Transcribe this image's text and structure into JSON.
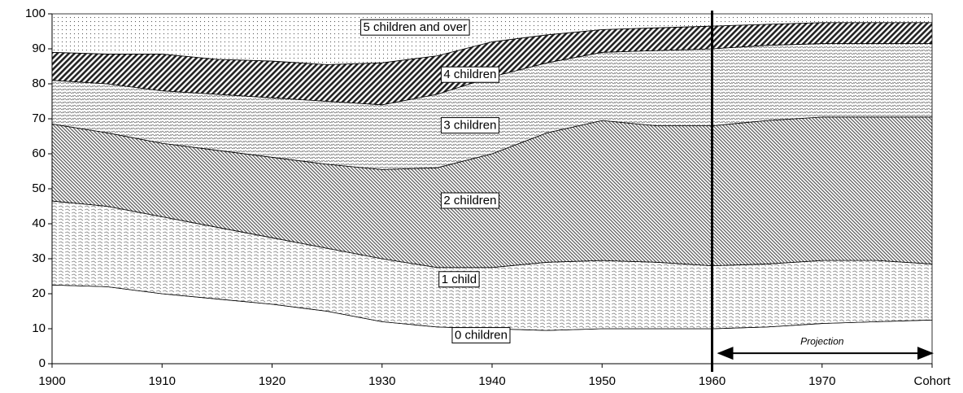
{
  "chart_data": {
    "type": "stacked_area",
    "x": [
      1900,
      1905,
      1910,
      1915,
      1920,
      1925,
      1930,
      1935,
      1940,
      1945,
      1950,
      1955,
      1960,
      1965,
      1970,
      1975,
      1980
    ],
    "series": [
      {
        "name": "0 children",
        "pattern": "none",
        "color": "#ffffff",
        "values": [
          22.5,
          22,
          20,
          18.5,
          17,
          15,
          12,
          10.5,
          10,
          9.5,
          10,
          10,
          10,
          10.5,
          11.5,
          12,
          12.5
        ]
      },
      {
        "name": "1 child",
        "pattern": "wave",
        "color": "#000000",
        "values": [
          24,
          23,
          22,
          20.5,
          19,
          18,
          18,
          17,
          17.5,
          19.5,
          19.5,
          19,
          18,
          18,
          18,
          17.5,
          16
        ]
      },
      {
        "name": "2 children",
        "pattern": "diag-dense",
        "color": "#000000",
        "values": [
          22,
          21,
          21,
          22,
          23,
          24,
          25.5,
          28.5,
          32.5,
          37,
          40,
          39,
          40,
          41,
          41,
          41,
          42
        ]
      },
      {
        "name": "3 children",
        "pattern": "horiz-wave",
        "color": "#000000",
        "values": [
          12.5,
          14,
          15,
          16,
          17,
          18,
          18.5,
          21,
          22,
          20,
          19.5,
          21.5,
          22,
          21.5,
          21,
          21,
          21
        ]
      },
      {
        "name": "4 children",
        "pattern": "diag-dark",
        "color": "#000000",
        "values": [
          8,
          8.5,
          10.5,
          10,
          10.5,
          10.5,
          12,
          11,
          10,
          8,
          6.5,
          6.5,
          6.5,
          6,
          6,
          6,
          6
        ]
      },
      {
        "name": "5 children and over",
        "pattern": "dots",
        "color": "#000000",
        "values": [
          11,
          11.5,
          11.5,
          13,
          13.5,
          14.5,
          14,
          12,
          8,
          6,
          4.5,
          4,
          3.5,
          3,
          2.5,
          2.5,
          2.5
        ]
      }
    ],
    "xlim": [
      1900,
      1980
    ],
    "xticks": [
      1900,
      1910,
      1920,
      1930,
      1940,
      1950,
      1960,
      1970,
      {
        "value": 1980,
        "label": "Cohort"
      }
    ],
    "ylim": [
      0,
      100
    ],
    "yticks": [
      0,
      10,
      20,
      30,
      40,
      50,
      60,
      70,
      80,
      90,
      100
    ],
    "divider_x": 1960,
    "annotation": {
      "text": "Projection",
      "x_start": 1960,
      "x_end": 1980
    }
  }
}
